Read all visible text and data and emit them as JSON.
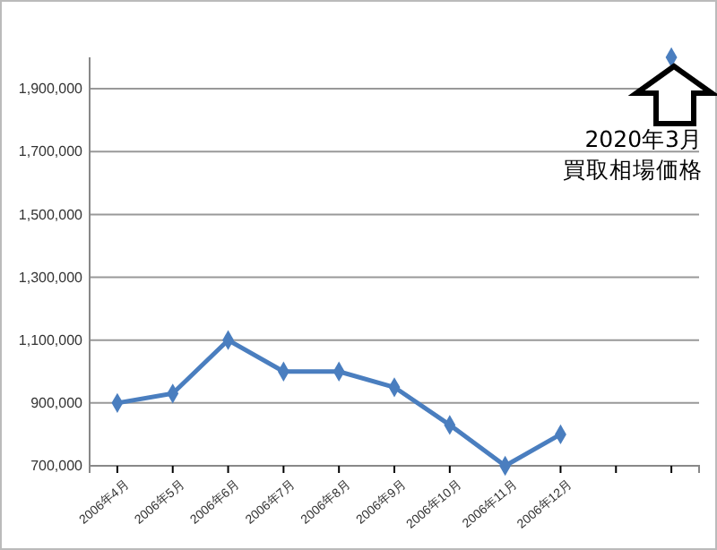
{
  "chart_data": {
    "type": "line",
    "categories": [
      "2006年4月",
      "2006年5月",
      "2006年6月",
      "2006年7月",
      "2006年8月",
      "2006年9月",
      "2006年10月",
      "2006年11月",
      "2006年12月",
      null,
      null
    ],
    "series": [
      {
        "color": "#4a7ebf",
        "values": [
          900000,
          930000,
          1100000,
          1000000,
          1000000,
          950000,
          830000,
          700000,
          800000,
          null,
          2000000
        ]
      }
    ],
    "ylim": [
      700000,
      2000000
    ],
    "yticks": [
      {
        "value": 700000,
        "label": "700,000"
      },
      {
        "value": 900000,
        "label": "900,000"
      },
      {
        "value": 1100000,
        "label": "1,100,000"
      },
      {
        "value": 1300000,
        "label": "1,300,000"
      },
      {
        "value": 1500000,
        "label": "1,500,000"
      },
      {
        "value": 1700000,
        "label": "1,700,000"
      },
      {
        "value": 1900000,
        "label": "1,900,000"
      }
    ],
    "grid": "y",
    "marker": "diamond",
    "line_style": "solid",
    "annotations": [
      "2020年3月",
      "買取相場価格"
    ]
  }
}
